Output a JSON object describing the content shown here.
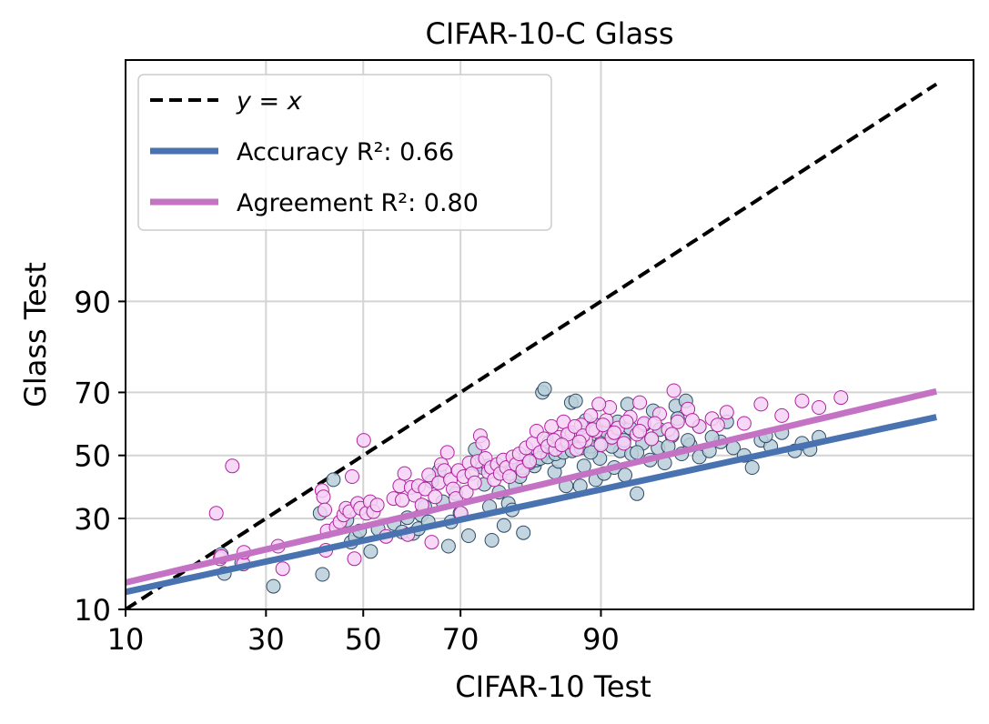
{
  "chart_data": {
    "type": "scatter",
    "title": "CIFAR-10-C Glass",
    "xlabel": "CIFAR-10 Test",
    "ylabel": "Glass Test",
    "xlim": [
      10,
      100
    ],
    "ylim": [
      10,
      100
    ],
    "axis_scale": "probit",
    "grid": true,
    "legend_position": "top-left",
    "x_ticks": [
      10,
      30,
      50,
      70,
      90
    ],
    "y_ticks": [
      10,
      30,
      50,
      70,
      90
    ],
    "legend": {
      "identity": "y = x",
      "accuracy": "Accuracy R²: 0.66",
      "agreement": "Agreement R²: 0.80"
    },
    "series": [
      {
        "name": "y = x",
        "kind": "line",
        "style": "dashed",
        "color": "#000000",
        "points": [
          [
            10,
            10
          ],
          [
            99.9,
            99.9
          ]
        ]
      },
      {
        "name": "Accuracy fit",
        "kind": "line",
        "color": "#4872b0",
        "points": [
          [
            10,
            12.8
          ],
          [
            99.9,
            62.5
          ]
        ]
      },
      {
        "name": "Agreement fit",
        "kind": "line",
        "color": "#c473c4",
        "points": [
          [
            10,
            14.5
          ],
          [
            99.9,
            70.3
          ]
        ]
      },
      {
        "name": "Accuracy",
        "kind": "scatter",
        "color": "#b9cfd9",
        "edge": "#2e4a66",
        "points": [
          [
            22.2,
            20.5
          ],
          [
            22.7,
            16.3
          ],
          [
            25.6,
            18.5
          ],
          [
            31.4,
            13.8
          ],
          [
            41.3,
            16.1
          ],
          [
            40.8,
            31.5
          ],
          [
            43.6,
            42.0
          ],
          [
            46.5,
            29.5
          ],
          [
            47.4,
            23.5
          ],
          [
            48.3,
            24.8
          ],
          [
            49.2,
            26.5
          ],
          [
            51.6,
            21.2
          ],
          [
            53.2,
            27.0
          ],
          [
            56.6,
            28.5
          ],
          [
            58.3,
            26.2
          ],
          [
            59.4,
            30.2
          ],
          [
            60.6,
            25.8
          ],
          [
            61.7,
            27.1
          ],
          [
            62.3,
            31.0
          ],
          [
            63.0,
            33.5
          ],
          [
            63.7,
            29.0
          ],
          [
            64.4,
            41.5
          ],
          [
            65.9,
            45.0
          ],
          [
            66.6,
            35.0
          ],
          [
            67.7,
            22.5
          ],
          [
            68.2,
            29.0
          ],
          [
            69.1,
            37.5
          ],
          [
            69.9,
            31.5
          ],
          [
            71.5,
            25.2
          ],
          [
            72.7,
            52.0
          ],
          [
            73.2,
            47.0
          ],
          [
            74.3,
            40.5
          ],
          [
            75.2,
            33.5
          ],
          [
            75.6,
            24.0
          ],
          [
            76.8,
            38.0
          ],
          [
            77.6,
            28.0
          ],
          [
            78.3,
            34.5
          ],
          [
            78.9,
            32.5
          ],
          [
            79.4,
            40.0
          ],
          [
            80.6,
            26.0
          ],
          [
            80.1,
            43.0
          ],
          [
            81.0,
            49.5
          ],
          [
            82.2,
            46.5
          ],
          [
            83.5,
            50.5
          ],
          [
            84.2,
            54.5
          ],
          [
            84.9,
            44.5
          ],
          [
            85.4,
            48.0
          ],
          [
            86.3,
            40.0
          ],
          [
            86.9,
            52.0
          ],
          [
            87.5,
            57.0
          ],
          [
            87.9,
            40.0
          ],
          [
            88.3,
            46.5
          ],
          [
            89.0,
            53.0
          ],
          [
            89.5,
            42.0
          ],
          [
            89.9,
            49.0
          ],
          [
            90.3,
            44.0
          ],
          [
            90.8,
            55.5
          ],
          [
            91.2,
            46.0
          ],
          [
            91.7,
            51.5
          ],
          [
            92.1,
            43.5
          ],
          [
            92.6,
            50.5
          ],
          [
            93.0,
            37.5
          ],
          [
            93.4,
            54.0
          ],
          [
            93.9,
            48.5
          ],
          [
            94.4,
            52.5
          ],
          [
            94.8,
            47.5
          ],
          [
            95.2,
            56.5
          ],
          [
            95.7,
            50.5
          ],
          [
            96.1,
            53.5
          ],
          [
            96.5,
            49.5
          ],
          [
            96.9,
            51.5
          ],
          [
            97.3,
            54.5
          ],
          [
            97.7,
            52.5
          ],
          [
            98.0,
            50.0
          ],
          [
            98.2,
            46.0
          ],
          [
            98.4,
            55.0
          ],
          [
            98.6,
            53.0
          ],
          [
            98.8,
            57.5
          ],
          [
            99.0,
            51.5
          ],
          [
            99.1,
            54.0
          ],
          [
            99.2,
            52.0
          ],
          [
            99.3,
            56.0
          ],
          [
            83.3,
            70.0
          ],
          [
            83.6,
            71.0
          ],
          [
            86.9,
            67.0
          ],
          [
            87.4,
            67.5
          ],
          [
            92.3,
            66.5
          ],
          [
            94.1,
            64.5
          ],
          [
            95.4,
            66.0
          ],
          [
            95.9,
            67.5
          ],
          [
            74.0,
            46.0
          ],
          [
            75.0,
            46.5
          ],
          [
            76.5,
            44.5
          ],
          [
            77.5,
            45.5
          ],
          [
            78.5,
            44.0
          ],
          [
            79.0,
            47.0
          ],
          [
            80.5,
            46.0
          ],
          [
            81.5,
            47.5
          ],
          [
            82.5,
            48.5
          ],
          [
            83.0,
            49.0
          ],
          [
            84.0,
            49.5
          ],
          [
            85.0,
            50.5
          ],
          [
            86.0,
            51.0
          ],
          [
            87.0,
            51.5
          ],
          [
            88.0,
            52.5
          ],
          [
            89.0,
            51.0
          ],
          [
            90.0,
            54.0
          ],
          [
            91.0,
            53.0
          ],
          [
            92.0,
            55.0
          ],
          [
            93.0,
            51.0
          ],
          [
            94.0,
            55.5
          ],
          [
            95.0,
            53.0
          ],
          [
            96.0,
            55.0
          ],
          [
            97.0,
            56.0
          ],
          [
            98.5,
            56.5
          ],
          [
            88.5,
            61.5
          ],
          [
            89.5,
            60.0
          ],
          [
            90.5,
            58.0
          ],
          [
            91.5,
            61.0
          ],
          [
            92.5,
            59.0
          ],
          [
            93.5,
            60.0
          ],
          [
            94.5,
            58.5
          ],
          [
            95.5,
            62.0
          ],
          [
            96.5,
            59.5
          ],
          [
            97.5,
            61.0
          ]
        ]
      },
      {
        "name": "Agreement",
        "kind": "scatter",
        "color": "#f6d2f6",
        "edge": "#b0229f",
        "points": [
          [
            21.4,
            31.5
          ],
          [
            22.0,
            19.5
          ],
          [
            22.2,
            20.0
          ],
          [
            24.0,
            46.5
          ],
          [
            25.9,
            18.3
          ],
          [
            26.0,
            21.0
          ],
          [
            32.3,
            22.5
          ],
          [
            33.2,
            17.3
          ],
          [
            41.2,
            38.5
          ],
          [
            41.5,
            36.5
          ],
          [
            41.8,
            32.5
          ],
          [
            42.0,
            21.5
          ],
          [
            42.3,
            26.5
          ],
          [
            44.2,
            27.5
          ],
          [
            45.0,
            29.0
          ],
          [
            45.8,
            31.0
          ],
          [
            46.3,
            33.0
          ],
          [
            47.1,
            32.0
          ],
          [
            47.6,
            43.0
          ],
          [
            48.1,
            19.5
          ],
          [
            48.8,
            34.5
          ],
          [
            49.4,
            33.0
          ],
          [
            50.1,
            55.0
          ],
          [
            50.7,
            31.5
          ],
          [
            51.5,
            35.0
          ],
          [
            52.2,
            32.0
          ],
          [
            53.0,
            34.0
          ],
          [
            54.9,
            25.0
          ],
          [
            56.5,
            36.0
          ],
          [
            57.8,
            40.0
          ],
          [
            58.3,
            35.5
          ],
          [
            58.8,
            44.0
          ],
          [
            59.5,
            25.5
          ],
          [
            60.2,
            39.5
          ],
          [
            60.9,
            37.0
          ],
          [
            61.7,
            40.0
          ],
          [
            62.4,
            34.0
          ],
          [
            63.1,
            39.0
          ],
          [
            63.8,
            43.5
          ],
          [
            64.4,
            23.5
          ],
          [
            65.1,
            36.5
          ],
          [
            65.8,
            41.0
          ],
          [
            66.3,
            47.0
          ],
          [
            66.9,
            45.0
          ],
          [
            67.5,
            51.0
          ],
          [
            68.1,
            42.0
          ],
          [
            68.6,
            39.0
          ],
          [
            69.1,
            36.0
          ],
          [
            69.6,
            45.0
          ],
          [
            70.1,
            31.5
          ],
          [
            70.6,
            43.0
          ],
          [
            71.1,
            38.0
          ],
          [
            71.6,
            47.5
          ],
          [
            72.1,
            44.0
          ],
          [
            72.6,
            41.0
          ],
          [
            73.1,
            48.0
          ],
          [
            73.6,
            56.5
          ],
          [
            74.0,
            54.0
          ],
          [
            74.5,
            49.0
          ],
          [
            75.0,
            44.5
          ],
          [
            75.5,
            46.0
          ],
          [
            76.0,
            42.0
          ],
          [
            76.5,
            47.0
          ],
          [
            77.0,
            44.0
          ],
          [
            77.5,
            48.5
          ],
          [
            78.0,
            46.0
          ],
          [
            78.5,
            43.0
          ],
          [
            79.0,
            49.5
          ],
          [
            79.5,
            47.0
          ],
          [
            80.0,
            50.5
          ],
          [
            80.5,
            45.0
          ],
          [
            81.0,
            52.5
          ],
          [
            81.5,
            48.0
          ],
          [
            82.0,
            54.0
          ],
          [
            82.5,
            58.0
          ],
          [
            83.0,
            51.0
          ],
          [
            83.5,
            55.5
          ],
          [
            84.0,
            53.0
          ],
          [
            84.5,
            59.5
          ],
          [
            85.0,
            52.0
          ],
          [
            85.5,
            56.0
          ],
          [
            86.0,
            61.0
          ],
          [
            86.5,
            54.5
          ],
          [
            87.0,
            57.5
          ],
          [
            87.5,
            52.0
          ],
          [
            88.0,
            60.0
          ],
          [
            88.5,
            55.0
          ],
          [
            89.0,
            63.0
          ],
          [
            89.5,
            58.0
          ],
          [
            90.0,
            53.5
          ],
          [
            90.5,
            61.5
          ],
          [
            91.0,
            56.0
          ],
          [
            91.5,
            59.0
          ],
          [
            92.0,
            54.0
          ],
          [
            92.5,
            62.5
          ],
          [
            93.0,
            57.0
          ],
          [
            93.5,
            60.5
          ],
          [
            94.0,
            55.5
          ],
          [
            94.5,
            63.5
          ],
          [
            95.0,
            58.5
          ],
          [
            95.5,
            61.0
          ],
          [
            96.0,
            65.0
          ],
          [
            96.5,
            59.5
          ],
          [
            97.0,
            62.0
          ],
          [
            97.5,
            64.0
          ],
          [
            98.0,
            60.5
          ],
          [
            98.4,
            66.5
          ],
          [
            98.8,
            63.0
          ],
          [
            99.1,
            67.5
          ],
          [
            99.3,
            65.5
          ],
          [
            99.5,
            68.5
          ],
          [
            95.3,
            70.5
          ],
          [
            90.8,
            65.5
          ],
          [
            89.8,
            66.5
          ],
          [
            93.2,
            67.0
          ],
          [
            86.5,
            57.0
          ],
          [
            87.3,
            59.5
          ],
          [
            88.2,
            56.5
          ],
          [
            89.2,
            58.5
          ],
          [
            90.2,
            60.0
          ],
          [
            91.2,
            57.5
          ],
          [
            92.2,
            61.0
          ],
          [
            93.2,
            58.0
          ],
          [
            94.2,
            60.5
          ],
          [
            95.2,
            57.0
          ],
          [
            96.2,
            61.5
          ],
          [
            97.2,
            60.0
          ],
          [
            84.8,
            55.0
          ],
          [
            85.8,
            53.5
          ],
          [
            87.8,
            54.5
          ]
        ]
      }
    ]
  }
}
